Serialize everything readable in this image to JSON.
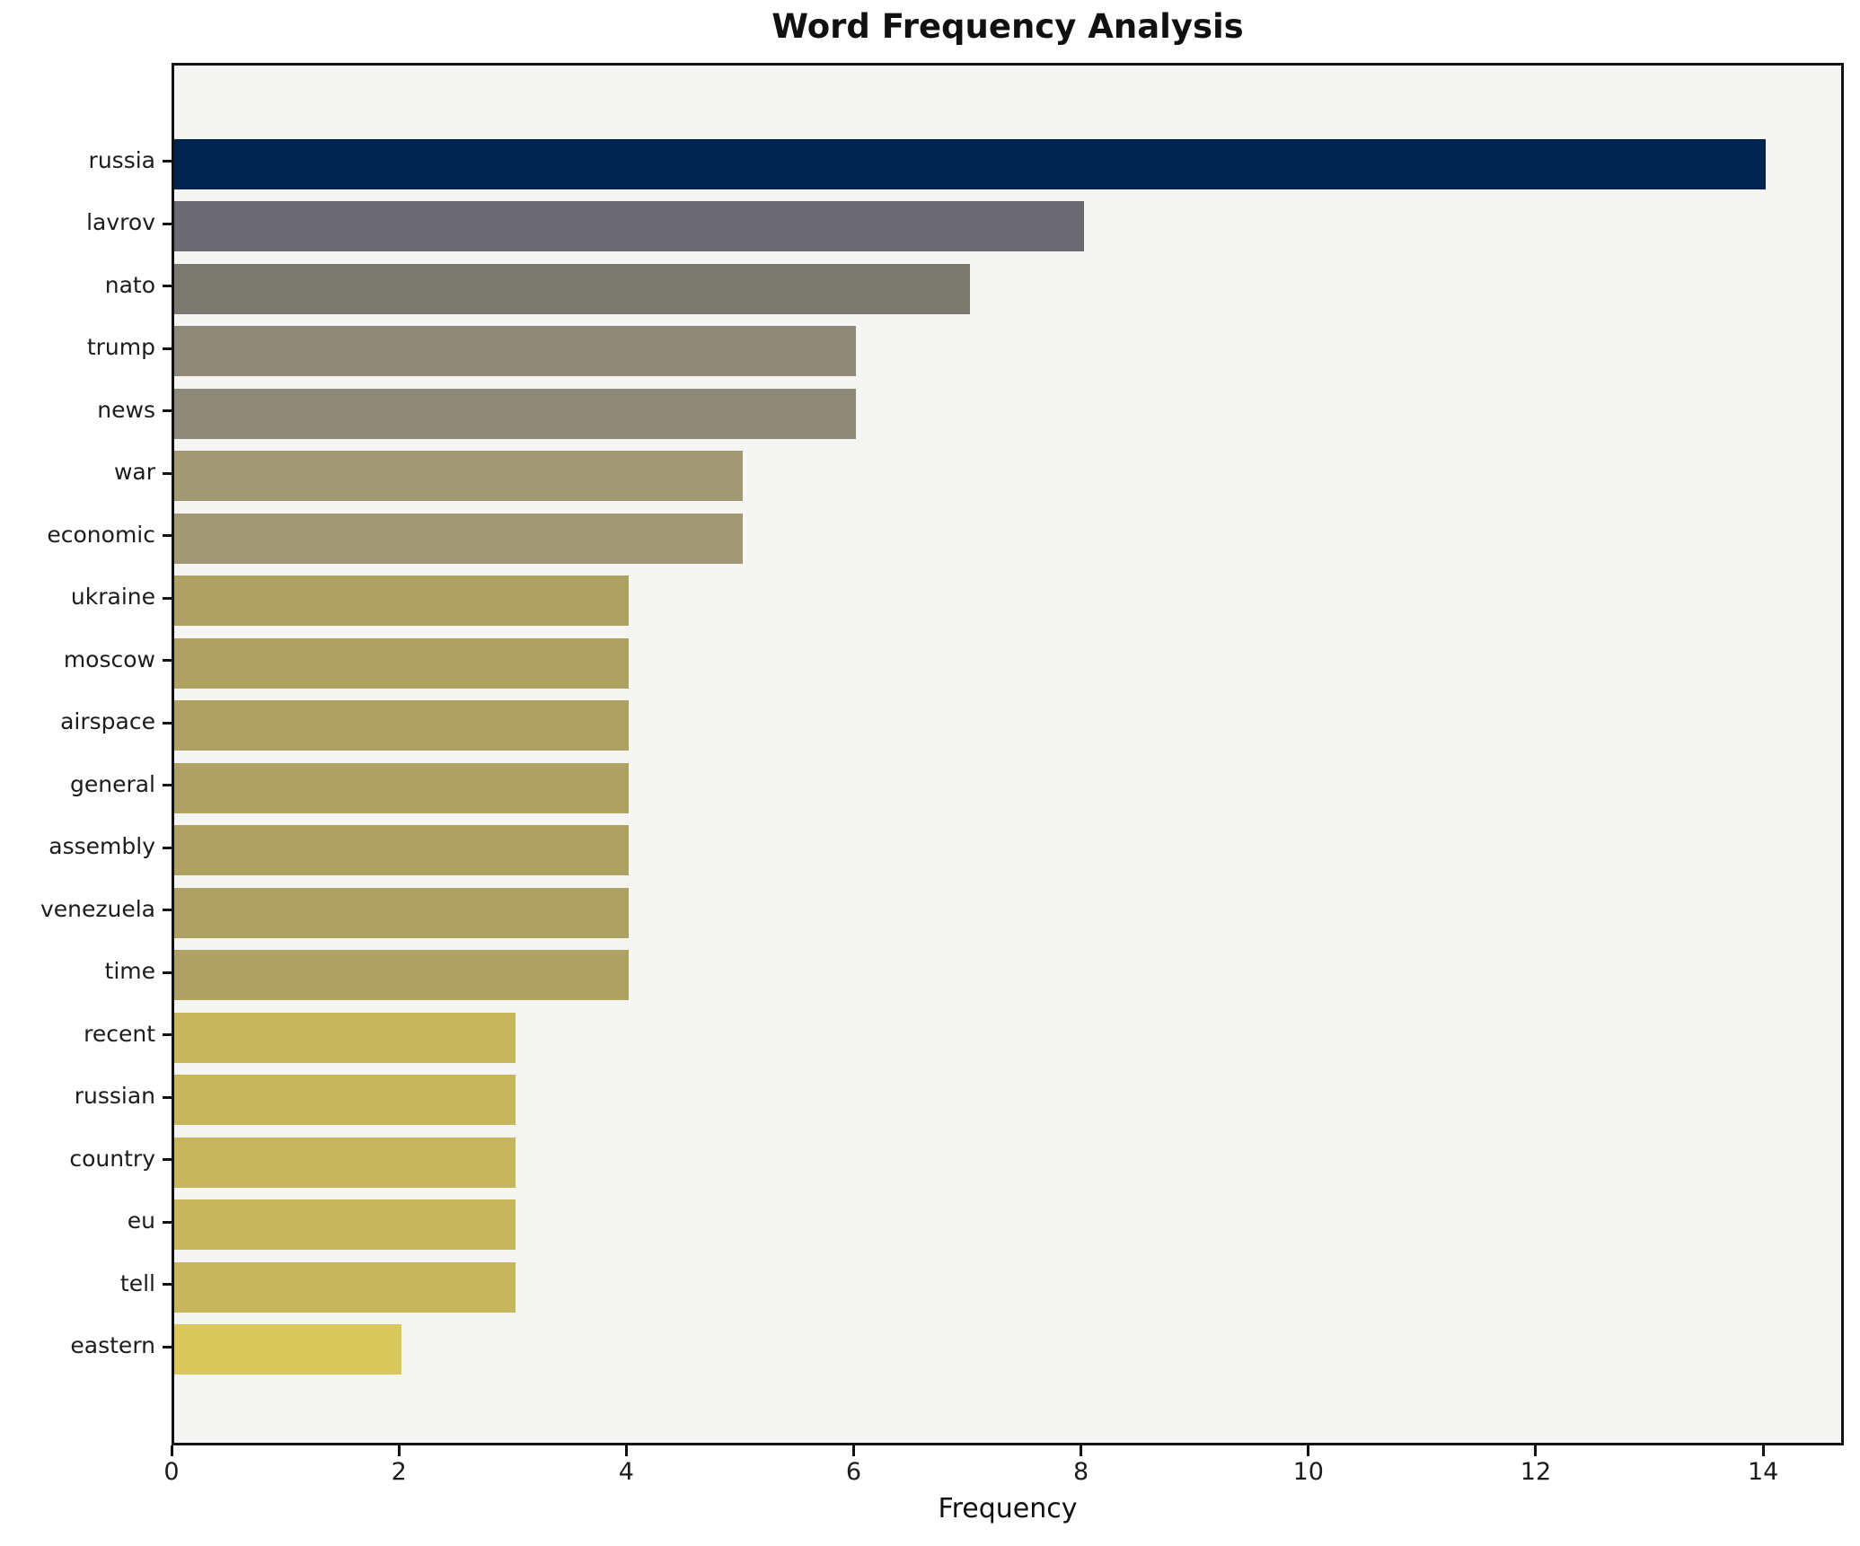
{
  "chart_data": {
    "type": "bar",
    "orientation": "horizontal",
    "title": "Word Frequency Analysis",
    "xlabel": "Frequency",
    "ylabel": "",
    "categories": [
      "russia",
      "lavrov",
      "nato",
      "trump",
      "news",
      "war",
      "economic",
      "ukraine",
      "moscow",
      "airspace",
      "general",
      "assembly",
      "venezuela",
      "time",
      "recent",
      "russian",
      "country",
      "eu",
      "tell",
      "eastern"
    ],
    "values": [
      14,
      8,
      7,
      6,
      6,
      5,
      5,
      4,
      4,
      4,
      4,
      4,
      4,
      4,
      3,
      3,
      3,
      3,
      3,
      2
    ],
    "xlim": [
      0,
      14.71
    ],
    "x_ticks": [
      0,
      2,
      4,
      6,
      8,
      10,
      12,
      14
    ],
    "grid": false,
    "legend": "none",
    "colors": {
      "colormap": "cividis-by-value",
      "value_14": "#00234f",
      "value_8": "#6c6b73",
      "value_7": "#7b786f",
      "value_6": "#8e8a79",
      "value_5": "#a19973",
      "value_4": "#ada263",
      "value_3": "#c5b55c",
      "value_2": "#d9c75a",
      "plot_background": "#f5f5f4",
      "figure_background": "#ffffff",
      "spine": "#121212",
      "text": "#1c1c1c"
    }
  }
}
